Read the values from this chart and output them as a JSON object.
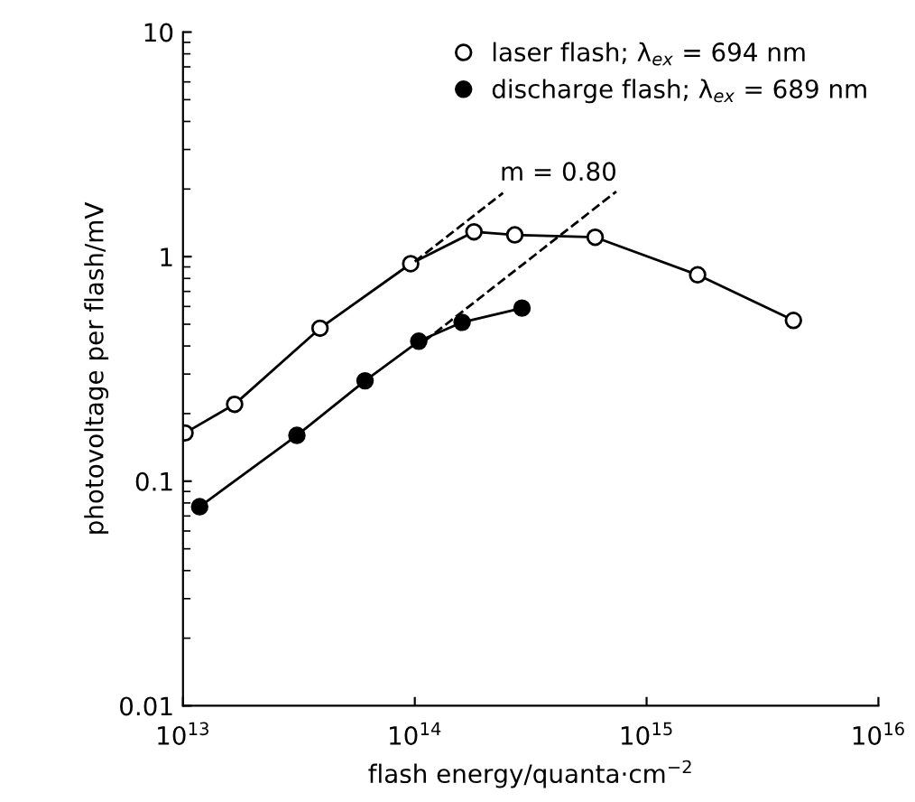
{
  "chart_data": {
    "type": "line",
    "xlabel": "flash energy/quanta·cm$^{−2}$",
    "ylabel": "photovoltage per flash/mV",
    "log": "xy",
    "xlim": [
      10000000000000.0,
      1e+16
    ],
    "ylim": [
      0.01,
      10
    ],
    "xticks": [
      {
        "value": 10000000000000.0,
        "label": "10$^{13}$"
      },
      {
        "value": 100000000000000.0,
        "label": "10$^{14}$"
      },
      {
        "value": 1000000000000000.0,
        "label": "10$^{15}$"
      },
      {
        "value": 1e+16,
        "label": "10$^{16}$"
      }
    ],
    "yticks": [
      {
        "value": 0.01,
        "label": "0.01"
      },
      {
        "value": 0.1,
        "label": "0.1"
      },
      {
        "value": 1,
        "label": "1"
      },
      {
        "value": 10,
        "label": "10"
      }
    ],
    "grid": false,
    "legend": "top right",
    "annotations": [
      "m = 0.80"
    ],
    "series": [
      {
        "name": "laser flash; λ$_{ex}$ = 694 nm",
        "marker": "circle",
        "color": "#000000",
        "x": [
          10200000000000.0,
          16700000000000.0,
          39000000000000.0,
          96000000000000.0,
          180000000000000.0,
          270000000000000.0,
          600000000000000.0,
          1660000000000000.0,
          4300000000000000.0
        ],
        "values": [
          0.164,
          0.22,
          0.48,
          0.93,
          1.29,
          1.25,
          1.22,
          0.83,
          0.52
        ]
      },
      {
        "name": "discharge flash; λ$_{ex}$ = 689 nm",
        "marker": "circle",
        "color": "#000000",
        "x": [
          11800000000000.0,
          31000000000000.0,
          61000000000000.0,
          104000000000000.0,
          160000000000000.0,
          290000000000000.0
        ],
        "values": [
          0.077,
          0.16,
          0.28,
          0.42,
          0.51,
          0.59
        ]
      },
      {
        "type": "line",
        "line_style": "dashed",
        "color": "#000000",
        "x": [
          100000000000000.0,
          240000000000000.0
        ],
        "values": [
          0.95,
          1.92
        ]
      },
      {
        "type": "line",
        "line_style": "dashed",
        "color": "#000000",
        "x": [
          110000000000000.0,
          740000000000000.0
        ],
        "values": [
          0.42,
          1.95
        ]
      }
    ]
  }
}
